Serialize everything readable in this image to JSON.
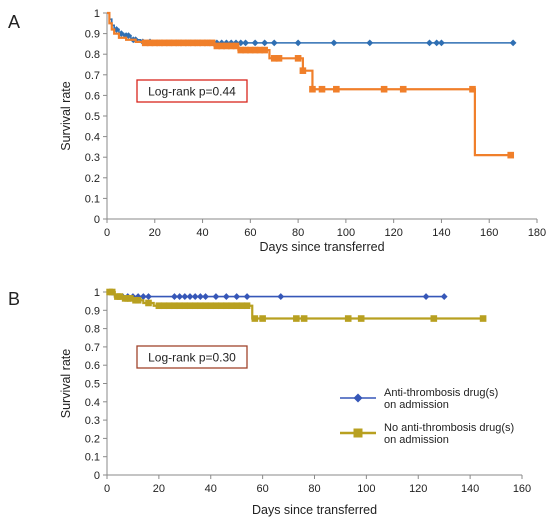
{
  "chart_data": [
    {
      "type": "line",
      "panel_label": "A",
      "xlabel": "Days since transferred",
      "ylabel": "Survival rate",
      "xlim": [
        0,
        180
      ],
      "ylim": [
        0,
        1
      ],
      "xticks": [
        0,
        20,
        40,
        60,
        80,
        100,
        120,
        140,
        160,
        180
      ],
      "yticks": [
        0,
        0.1,
        0.2,
        0.3,
        0.4,
        0.5,
        0.6,
        0.7,
        0.8,
        0.9,
        1
      ],
      "annotation": "Log-rank p=0.44",
      "annotation_box_color": "#d9251d",
      "series": [
        {
          "color": "#2f6fb3",
          "marker": "diamond",
          "steps": [
            [
              0,
              1.0
            ],
            [
              1,
              0.97
            ],
            [
              2,
              0.94
            ],
            [
              3,
              0.92
            ],
            [
              5,
              0.9
            ],
            [
              7,
              0.89
            ],
            [
              10,
              0.87
            ],
            [
              14,
              0.86
            ],
            [
              20,
              0.855
            ],
            [
              170,
              0.855
            ]
          ],
          "censored_x": [
            4,
            6,
            8,
            9,
            11,
            12,
            15,
            18,
            22,
            26,
            30,
            34,
            38,
            42,
            46,
            48,
            50,
            52,
            54,
            56,
            58,
            62,
            66,
            70,
            80,
            95,
            110,
            135,
            138,
            140,
            170
          ]
        },
        {
          "color": "#f07f2a",
          "marker": "square",
          "steps": [
            [
              0,
              1.0
            ],
            [
              1,
              0.95
            ],
            [
              2,
              0.92
            ],
            [
              3,
              0.9
            ],
            [
              5,
              0.88
            ],
            [
              8,
              0.87
            ],
            [
              12,
              0.86
            ],
            [
              15,
              0.855
            ],
            [
              45,
              0.84
            ],
            [
              55,
              0.82
            ],
            [
              68,
              0.78
            ],
            [
              78,
              0.78
            ],
            [
              82,
              0.72
            ],
            [
              86,
              0.63
            ],
            [
              153,
              0.63
            ],
            [
              154,
              0.31
            ],
            [
              169,
              0.31
            ]
          ],
          "censored_x": [
            16,
            18,
            20,
            22,
            24,
            26,
            28,
            30,
            32,
            34,
            36,
            38,
            40,
            42,
            44,
            46,
            48,
            50,
            52,
            54,
            56,
            58,
            60,
            62,
            64,
            66,
            70,
            72,
            80,
            82,
            86,
            90,
            96,
            116,
            124,
            153,
            169
          ]
        }
      ]
    },
    {
      "type": "line",
      "panel_label": "B",
      "xlabel": "Days since transferred",
      "ylabel": "Survival rate",
      "xlim": [
        0,
        160
      ],
      "ylim": [
        0,
        1
      ],
      "xticks": [
        0,
        20,
        40,
        60,
        80,
        100,
        120,
        140,
        160
      ],
      "yticks": [
        0,
        0.1,
        0.2,
        0.3,
        0.4,
        0.5,
        0.6,
        0.7,
        0.8,
        0.9,
        1
      ],
      "annotation": "Log-rank p=0.30",
      "annotation_box_color": "#a0442c",
      "legend_position": "right",
      "series": [
        {
          "name": "Anti-thrombosis drug(s) on admission",
          "legend_lines": [
            "Anti-thrombosis drug(s)",
            "on admission"
          ],
          "color": "#3657b8",
          "marker": "diamond",
          "steps": [
            [
              0,
              1.0
            ],
            [
              2,
              0.985
            ],
            [
              5,
              0.975
            ],
            [
              130,
              0.975
            ]
          ],
          "censored_x": [
            6,
            8,
            10,
            12,
            14,
            16,
            26,
            28,
            30,
            32,
            34,
            36,
            38,
            42,
            46,
            50,
            54,
            67,
            123,
            130
          ]
        },
        {
          "name": "No anti-thrombosis drug(s) on admission",
          "legend_lines": [
            "No anti-thrombosis drug(s)",
            "on admission"
          ],
          "color": "#b8a020",
          "marker": "square",
          "steps": [
            [
              0,
              1.0
            ],
            [
              3,
              0.975
            ],
            [
              6,
              0.965
            ],
            [
              10,
              0.955
            ],
            [
              14,
              0.94
            ],
            [
              18,
              0.925
            ],
            [
              56,
              0.925
            ],
            [
              56,
              0.855
            ],
            [
              145,
              0.855
            ]
          ],
          "censored_x": [
            1,
            2,
            4,
            5,
            7,
            8,
            9,
            11,
            12,
            16,
            20,
            22,
            24,
            26,
            28,
            30,
            32,
            34,
            36,
            38,
            40,
            42,
            44,
            46,
            48,
            50,
            52,
            54,
            57,
            60,
            73,
            76,
            93,
            98,
            126,
            145
          ]
        }
      ]
    }
  ]
}
